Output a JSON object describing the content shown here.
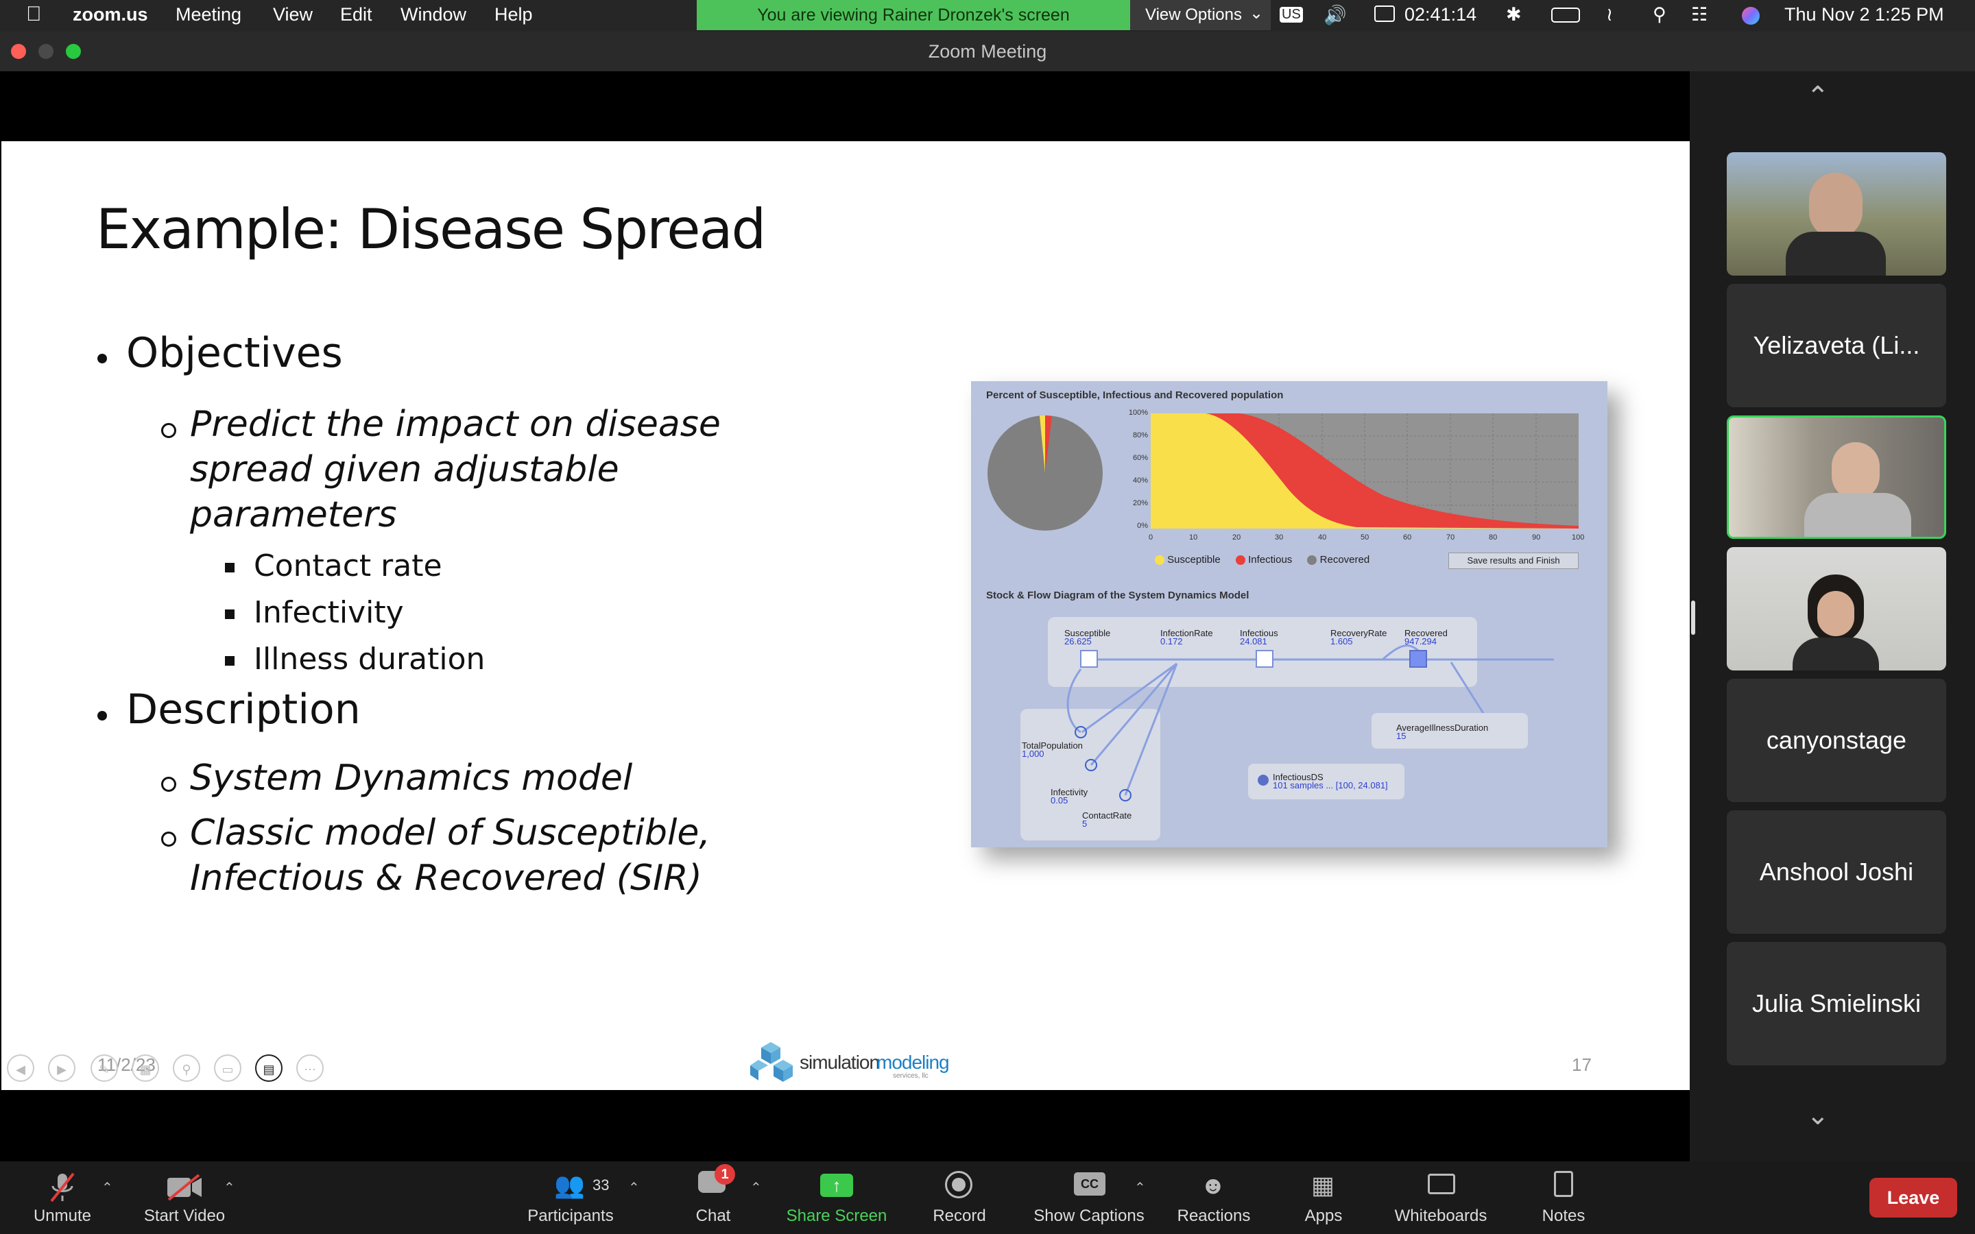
{
  "menubar": {
    "app_name": "zoom.us",
    "menus": [
      "Meeting",
      "View",
      "Edit",
      "Window",
      "Help"
    ],
    "banner": "You are viewing Rainer Dronzek's screen",
    "view_options": "View Options",
    "input_source": "US",
    "timer": "02:41:14",
    "datetime": "Thu Nov 2  1:25 PM"
  },
  "window": {
    "title": "Zoom Meeting"
  },
  "slide": {
    "title": "Example: Disease Spread",
    "objectives_heading": "Objectives",
    "objective_lines": [
      "Predict the impact on disease",
      "spread given adjustable",
      "parameters"
    ],
    "params": [
      "Contact rate",
      "Infectivity",
      "Illness duration"
    ],
    "description_heading": "Description",
    "desc1": "System Dynamics model",
    "desc2_lines": [
      "Classic model of Susceptible,",
      "Infectious & Recovered (SIR)"
    ],
    "date": "11/2/23",
    "page_number": "17",
    "logo_text_a": "simulation",
    "logo_text_b": "modeling",
    "logo_sub": "services, llc"
  },
  "embedded_model": {
    "chart_title": "Percent of Susceptible, Infectious and Recovered population",
    "y_ticks": [
      "100%",
      "80%",
      "60%",
      "40%",
      "20%",
      "0%"
    ],
    "x_ticks": [
      "0",
      "10",
      "20",
      "30",
      "40",
      "50",
      "60",
      "70",
      "80",
      "90",
      "100"
    ],
    "legend": [
      "Susceptible",
      "Infectious",
      "Recovered"
    ],
    "save_button": "Save results and Finish",
    "diagram_title": "Stock & Flow Diagram of the System Dynamics Model",
    "stocks": [
      {
        "name": "Susceptible",
        "value": "26.625"
      },
      {
        "name": "InfectionRate",
        "value": "0.172"
      },
      {
        "name": "Infectious",
        "value": "24.081"
      },
      {
        "name": "RecoveryRate",
        "value": "1.605"
      },
      {
        "name": "Recovered",
        "value": "947.294"
      }
    ],
    "params": [
      {
        "name": "TotalPopulation",
        "value": "1,000"
      },
      {
        "name": "Infectivity",
        "value": "0.05"
      },
      {
        "name": "ContactRate",
        "value": "5"
      },
      {
        "name": "AverageIllnessDuration",
        "value": "15"
      }
    ],
    "dataset": {
      "name": "InfectiousDS",
      "value": "101 samples ... [100, 24.081]"
    }
  },
  "participants_panel": {
    "tiles": [
      "Yelizaveta (Li...",
      "canyonstage",
      "Anshool Joshi",
      "Julia Smielinski"
    ]
  },
  "toolbar": {
    "unmute": "Unmute",
    "start_video": "Start Video",
    "participants": "Participants",
    "participants_count": "33",
    "chat": "Chat",
    "chat_badge": "1",
    "share_screen": "Share Screen",
    "record": "Record",
    "show_captions": "Show Captions",
    "reactions": "Reactions",
    "apps": "Apps",
    "whiteboards": "Whiteboards",
    "notes": "Notes",
    "leave": "Leave"
  },
  "colors": {
    "banner_green": "#4ec25a",
    "susceptible": "#f9e04b",
    "infectious": "#e8403b",
    "recovered": "#808080",
    "leave_red": "#c62d2d",
    "active_speaker": "#3bd35b"
  }
}
